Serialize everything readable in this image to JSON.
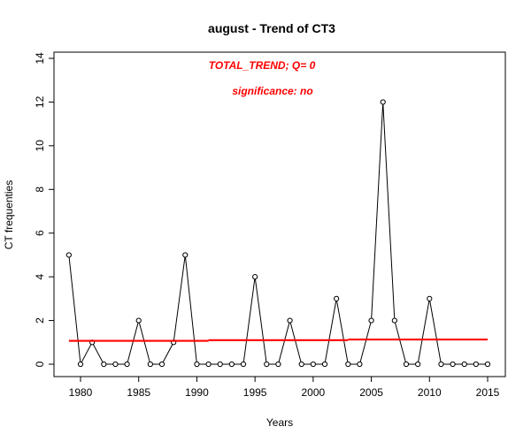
{
  "chart_data": {
    "type": "line",
    "title": "august  -  Trend of CT3",
    "xlabel": "Years",
    "ylabel": "CT frequenties",
    "xlim": [
      1978.5,
      2015.5
    ],
    "ylim": [
      0,
      14
    ],
    "x_ticks": [
      1980,
      1985,
      1990,
      1995,
      2000,
      2005,
      2010,
      2015
    ],
    "y_ticks": [
      0,
      2,
      4,
      6,
      8,
      10,
      12,
      14
    ],
    "grid": false,
    "series": [
      {
        "x": [
          1979,
          1980,
          1981,
          1982,
          1983,
          1984,
          1985,
          1986,
          1987,
          1988,
          1989,
          1990,
          1991,
          1992,
          1993,
          1994,
          1995,
          1996,
          1997,
          1998,
          1999,
          2000,
          2001,
          2002,
          2003,
          2004,
          2005,
          2006,
          2007,
          2008,
          2009,
          2010,
          2011,
          2012,
          2013,
          2014,
          2015
        ],
        "y": [
          5,
          0,
          1,
          0,
          0,
          0,
          2,
          0,
          0,
          1,
          5,
          0,
          0,
          0,
          0,
          0,
          4,
          0,
          0,
          2,
          0,
          0,
          0,
          3,
          0,
          0,
          2,
          12,
          2,
          0,
          0,
          3,
          0,
          0,
          0,
          0,
          0
        ],
        "color": "#000000",
        "marker": "open-circle"
      }
    ],
    "trend": {
      "color": "#ff0000",
      "segments": [
        {
          "x": [
            1979,
            1991
          ],
          "y": [
            1.07,
            1.07
          ]
        },
        {
          "x": [
            1991,
            2003
          ],
          "y": [
            1.1,
            1.1
          ]
        },
        {
          "x": [
            2003,
            2015
          ],
          "y": [
            1.13,
            1.13
          ]
        }
      ]
    },
    "annotations": [
      {
        "text": "TOTAL_TREND;  Q=   0",
        "color": "#ff0000"
      },
      {
        "text": "significance:   no",
        "color": "#ff0000"
      }
    ]
  }
}
